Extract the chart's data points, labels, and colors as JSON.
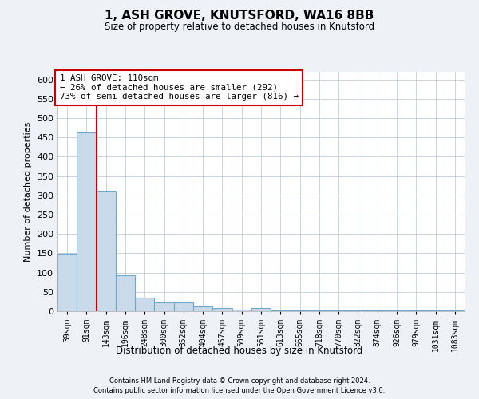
{
  "title": "1, ASH GROVE, KNUTSFORD, WA16 8BB",
  "subtitle": "Size of property relative to detached houses in Knutsford",
  "xlabel": "Distribution of detached houses by size in Knutsford",
  "ylabel": "Number of detached properties",
  "bar_labels": [
    "39sqm",
    "91sqm",
    "143sqm",
    "196sqm",
    "248sqm",
    "300sqm",
    "352sqm",
    "404sqm",
    "457sqm",
    "509sqm",
    "561sqm",
    "613sqm",
    "665sqm",
    "718sqm",
    "770sqm",
    "822sqm",
    "874sqm",
    "926sqm",
    "979sqm",
    "1031sqm",
    "1083sqm"
  ],
  "bar_values": [
    148,
    462,
    313,
    92,
    36,
    22,
    22,
    13,
    9,
    5,
    9,
    3,
    3,
    2,
    2,
    2,
    2,
    2,
    2,
    2,
    2
  ],
  "bar_color": "#c9daea",
  "bar_edgecolor": "#6fa8c8",
  "bar_width": 1.0,
  "vline_x": 1.52,
  "vline_color": "#cc0000",
  "annotation_text": "1 ASH GROVE: 110sqm\n← 26% of detached houses are smaller (292)\n73% of semi-detached houses are larger (816) →",
  "annotation_box_color": "#ffffff",
  "annotation_box_edgecolor": "#cc0000",
  "ylim": [
    0,
    620
  ],
  "yticks": [
    0,
    50,
    100,
    150,
    200,
    250,
    300,
    350,
    400,
    450,
    500,
    550,
    600
  ],
  "footer1": "Contains HM Land Registry data © Crown copyright and database right 2024.",
  "footer2": "Contains public sector information licensed under the Open Government Licence v3.0.",
  "background_color": "#eef2f7",
  "plot_bg_color": "#ffffff",
  "grid_color": "#c8d4e0"
}
